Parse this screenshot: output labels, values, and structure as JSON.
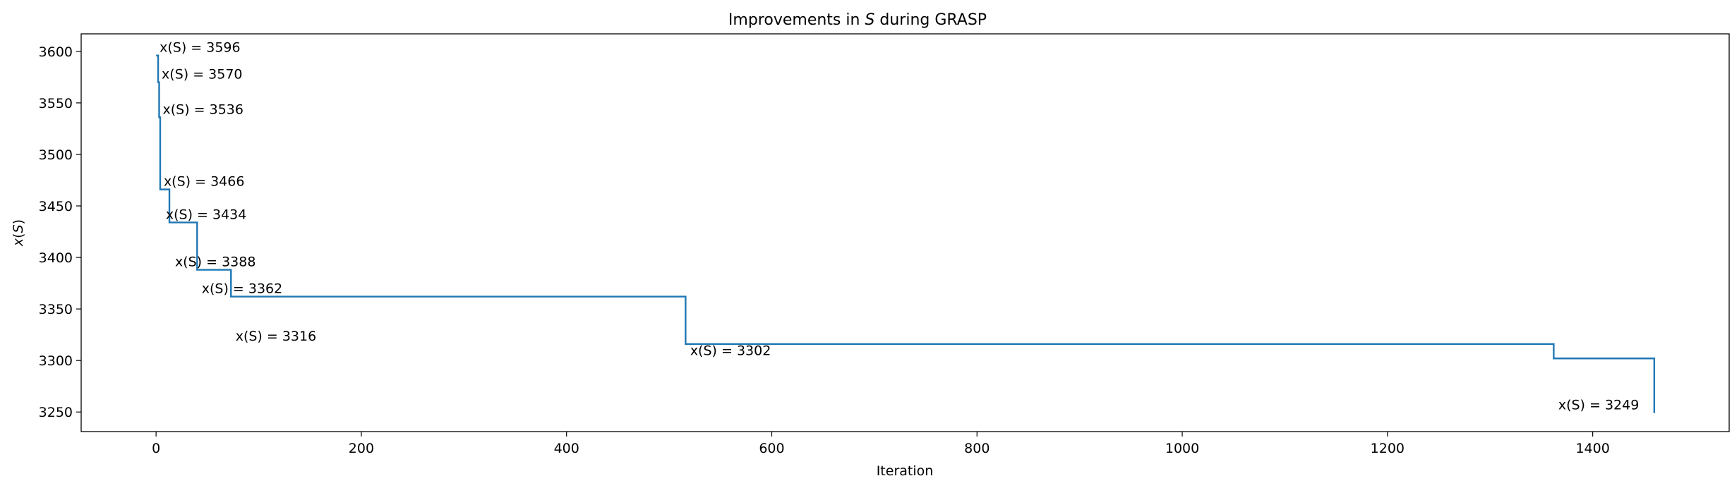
{
  "chart_data": {
    "type": "line",
    "step": "post",
    "title": "Improvements in S during GRASP",
    "title_parts": {
      "before": "Improvements in ",
      "italic": "S",
      "after": " during GRASP"
    },
    "xlabel": "Iteration",
    "ylabel_parts": {
      "italic_x": "x",
      "open": "(",
      "italic_s": "S",
      "close": ")"
    },
    "xlim": [
      -73,
      1533
    ],
    "ylim": [
      3231,
      3617
    ],
    "xticks": [
      0,
      200,
      400,
      600,
      800,
      1000,
      1200,
      1400
    ],
    "yticks": [
      3250,
      3300,
      3350,
      3400,
      3450,
      3500,
      3550,
      3600
    ],
    "grid": false,
    "color": "#1f77b4",
    "series": [
      {
        "x": [
          0,
          2,
          3,
          4,
          13,
          40,
          73,
          516,
          1362,
          1460
        ],
        "y": [
          3596,
          3570,
          3536,
          3466,
          3434,
          3388,
          3362,
          3316,
          3302,
          3249
        ]
      }
    ],
    "annotations": [
      {
        "x": 0,
        "y": 3596,
        "text": "x(S) = 3596"
      },
      {
        "x": 2,
        "y": 3570,
        "text": "x(S) = 3570"
      },
      {
        "x": 3,
        "y": 3536,
        "text": "x(S) = 3536"
      },
      {
        "x": 4,
        "y": 3466,
        "text": "x(S) = 3466"
      },
      {
        "x": 6,
        "y": 3434,
        "text": "x(S) = 3434"
      },
      {
        "x": 15,
        "y": 3388,
        "text": "x(S) = 3388"
      },
      {
        "x": 41,
        "y": 3362,
        "text": "x(S) = 3362"
      },
      {
        "x": 74,
        "y": 3316,
        "text": "x(S) = 3316"
      },
      {
        "x": 517,
        "y": 3302,
        "text": "x(S) = 3302"
      },
      {
        "x": 1363,
        "y": 3249,
        "text": "x(S) = 3249"
      }
    ]
  }
}
